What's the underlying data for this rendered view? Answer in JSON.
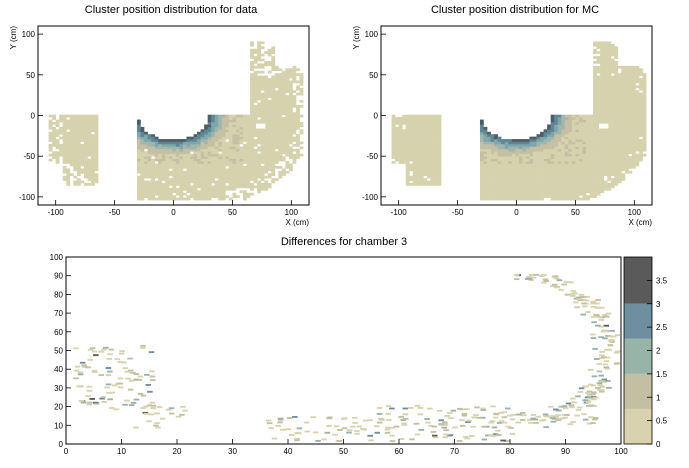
{
  "chart_data": [
    {
      "type": "heatmap",
      "title": "Cluster position distribution for data",
      "xlabel": "X (cm)",
      "ylabel": "Y (cm)",
      "xlim": [
        -115,
        115
      ],
      "ylim": [
        -110,
        110
      ],
      "xticks": [
        -100,
        -50,
        0,
        50,
        100
      ],
      "yticks": [
        -100,
        -50,
        0,
        50,
        100
      ],
      "grid": false,
      "palette": [
        "#d6d2ae",
        "#c5c0a4",
        "#9fb5ad",
        "#7fa6aa",
        "#5f8793",
        "#4c5e6a"
      ],
      "regions": {
        "left_block": {
          "x": [
            -105,
            -65
          ],
          "y": [
            -60,
            0
          ]
        },
        "left_tail": {
          "x": [
            -95,
            -65
          ],
          "y": [
            -85,
            -60
          ]
        },
        "main_region": {
          "x": [
            -30,
            110
          ],
          "y": [
            -103,
            0
          ]
        },
        "semicircle_hole": {
          "center": [
            0,
            0
          ],
          "radius": 30
        },
        "upper_right": {
          "x": [
            65,
            110
          ],
          "y": [
            0,
            62
          ]
        },
        "upper_right_tip": {
          "x": [
            65,
            85
          ],
          "y": [
            62,
            92
          ]
        },
        "outer_radius": 120,
        "hot_ring": {
          "center": [
            0,
            0
          ],
          "r_inner": 30,
          "r_outer": 48
        }
      }
    },
    {
      "type": "heatmap",
      "title": "Cluster position distribution for MC",
      "xlabel": "X (cm)",
      "ylabel": "Y (cm)",
      "xlim": [
        -115,
        115
      ],
      "ylim": [
        -110,
        110
      ],
      "xticks": [
        -100,
        -50,
        0,
        50,
        100
      ],
      "yticks": [
        -100,
        -50,
        0,
        50,
        100
      ],
      "grid": false,
      "palette": [
        "#d6d2ae",
        "#c5c0a4",
        "#9fb5ad",
        "#7fa6aa",
        "#5f8793",
        "#4c5e6a"
      ],
      "regions": {
        "left_block": {
          "x": [
            -105,
            -65
          ],
          "y": [
            -60,
            0
          ]
        },
        "left_tail": {
          "x": [
            -95,
            -65
          ],
          "y": [
            -85,
            -60
          ]
        },
        "main_region": {
          "x": [
            -30,
            110
          ],
          "y": [
            -103,
            0
          ]
        },
        "semicircle_hole": {
          "center": [
            0,
            0
          ],
          "radius": 30
        },
        "upper_right": {
          "x": [
            65,
            110
          ],
          "y": [
            0,
            62
          ]
        },
        "upper_right_tip": {
          "x": [
            65,
            85
          ],
          "y": [
            62,
            92
          ]
        },
        "outer_radius": 120,
        "hot_ring": {
          "center": [
            0,
            0
          ],
          "r_inner": 30,
          "r_outer": 48
        }
      }
    },
    {
      "type": "heatmap",
      "title": "Differences for chamber 3",
      "xlabel": "",
      "ylabel": "",
      "xlim": [
        0,
        100
      ],
      "ylim": [
        0,
        100
      ],
      "xticks": [
        0,
        10,
        20,
        30,
        40,
        50,
        60,
        70,
        80,
        90,
        100
      ],
      "yticks": [
        0,
        10,
        20,
        30,
        40,
        50,
        60,
        70,
        80,
        90,
        100
      ],
      "grid": false,
      "zlim": [
        0,
        4
      ],
      "colorbar": {
        "ticks": [
          0,
          0.5,
          1,
          1.5,
          2,
          2.5,
          3,
          3.5
        ],
        "tick_labels": [
          "0",
          "0.5",
          "1",
          "1.5",
          "2",
          "2.5",
          "3",
          "3.5"
        ],
        "colors": [
          "#d8d3ae",
          "#c3bfa3",
          "#98b3a8",
          "#6f8fa0",
          "#5a5a5a"
        ]
      },
      "clusters": [
        {
          "x": [
            1,
            16
          ],
          "y": [
            18,
            52
          ]
        },
        {
          "x": [
            12,
            22
          ],
          "y": [
            8,
            20
          ]
        },
        {
          "x": [
            36,
            80
          ],
          "y": [
            1,
            14
          ]
        },
        {
          "x": [
            54,
            95
          ],
          "y": [
            8,
            20
          ]
        },
        {
          "x": [
            77,
            99
          ],
          "y": [
            12,
            90
          ]
        }
      ]
    }
  ]
}
